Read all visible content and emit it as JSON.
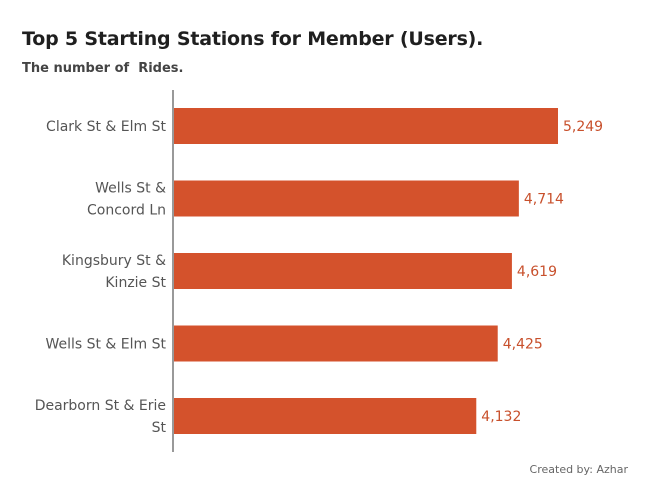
{
  "chart_data": {
    "type": "bar",
    "orientation": "horizontal",
    "title": "Top 5 Starting Stations for Member (Users).",
    "subtitle": "The number of  Rides.",
    "categories": [
      "Clark St & Elm St",
      "Wells St & Concord Ln",
      "Kingsbury St & Kinzie St",
      "Wells St & Elm St",
      "Dearborn St & Erie St"
    ],
    "category_lines": [
      [
        "Clark St & Elm St"
      ],
      [
        "Wells St &",
        "Concord Ln"
      ],
      [
        "Kingsbury St &",
        "Kinzie St"
      ],
      [
        "Wells St & Elm St"
      ],
      [
        "Dearborn St & Erie",
        "St"
      ]
    ],
    "values": [
      5249,
      4714,
      4619,
      4425,
      4132
    ],
    "value_labels": [
      "5,249",
      "4,714",
      "4,619",
      "4,425",
      "4,132"
    ],
    "xlim": [
      0,
      5249
    ],
    "grid": false,
    "bar_color": "#d4522c",
    "label_color": "#c8502c"
  },
  "footer": "Created by: Azhar"
}
